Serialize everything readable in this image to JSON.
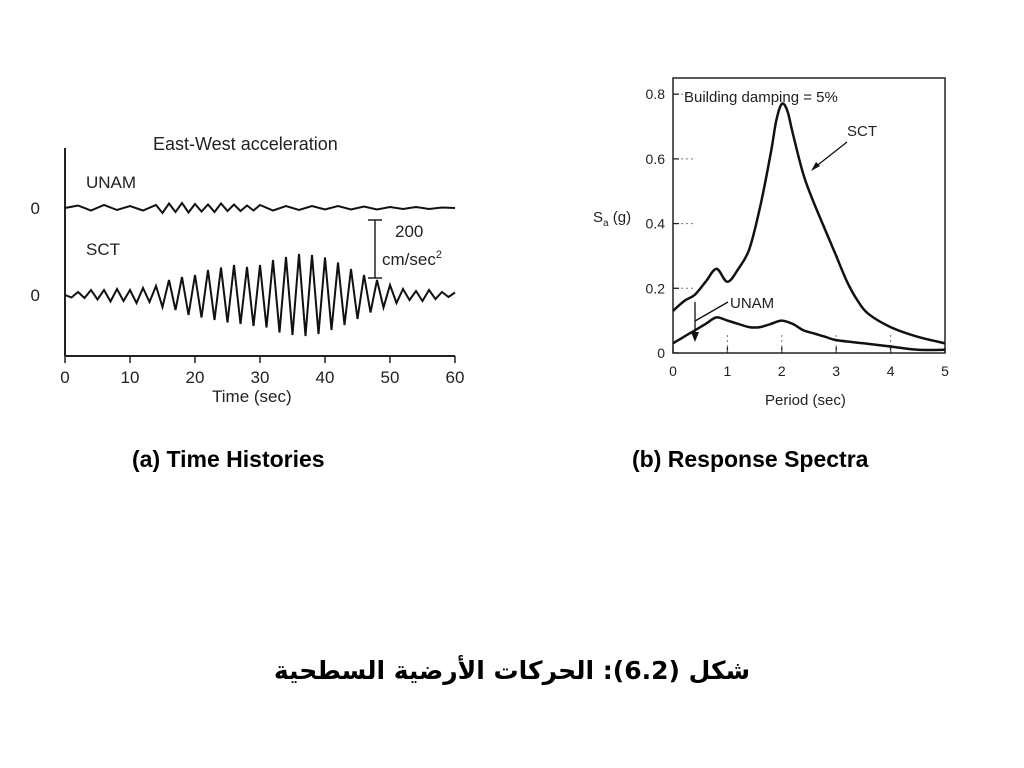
{
  "chart_data": [
    {
      "type": "line",
      "title": "East-West acceleration",
      "xlabel": "Time (sec)",
      "x_ticks": [
        0,
        10,
        20,
        30,
        40,
        50,
        60
      ],
      "xlim": [
        0,
        60
      ],
      "y_ticks": [
        "0",
        "0"
      ],
      "scale_bar": {
        "value": "200",
        "unit_prefix": "cm/sec",
        "unit_sup": "2"
      },
      "series": [
        {
          "name": "UNAM",
          "x": [
            0,
            2,
            4,
            6,
            8,
            10,
            12,
            14,
            15,
            16,
            17,
            18,
            19,
            20,
            21,
            22,
            23,
            24,
            25,
            26,
            27,
            28,
            29,
            30,
            32,
            34,
            36,
            38,
            40,
            42,
            44,
            46,
            48,
            50,
            52,
            54,
            56,
            58,
            60
          ],
          "y": [
            0,
            5,
            -5,
            6,
            -4,
            4,
            -5,
            6,
            -10,
            9,
            -8,
            10,
            -9,
            8,
            -7,
            7,
            -8,
            9,
            -6,
            7,
            -6,
            5,
            -5,
            6,
            -5,
            4,
            -4,
            4,
            -3,
            4,
            -3,
            3,
            -3,
            2,
            -2,
            2,
            -2,
            1,
            0
          ]
        },
        {
          "name": "SCT",
          "x": [
            0,
            1,
            2,
            3,
            4,
            5,
            6,
            7,
            8,
            9,
            10,
            11,
            12,
            13,
            14,
            15,
            16,
            17,
            18,
            19,
            20,
            21,
            22,
            23,
            24,
            25,
            26,
            27,
            28,
            29,
            30,
            31,
            32,
            33,
            34,
            35,
            36,
            37,
            38,
            39,
            40,
            41,
            42,
            43,
            44,
            45,
            46,
            47,
            48,
            49,
            50,
            51,
            52,
            53,
            54,
            55,
            56,
            57,
            58,
            59,
            60
          ],
          "y": [
            0,
            -5,
            6,
            -6,
            10,
            -9,
            10,
            -13,
            12,
            -12,
            10,
            -16,
            14,
            -14,
            18,
            -24,
            30,
            -30,
            36,
            -40,
            40,
            -45,
            50,
            -50,
            55,
            -55,
            60,
            -58,
            56,
            -62,
            60,
            -65,
            70,
            -75,
            76,
            -80,
            82,
            -82,
            80,
            -78,
            75,
            -70,
            65,
            -60,
            52,
            -48,
            40,
            -35,
            30,
            -25,
            20,
            -16,
            12,
            -10,
            8,
            -12,
            10,
            -8,
            6,
            -4,
            5
          ]
        }
      ]
    },
    {
      "type": "line",
      "title": "Building damping = 5%",
      "xlabel": "Period (sec)",
      "ylabel_main": "S",
      "ylabel_sub": "a",
      "ylabel_unit": " (g)",
      "xlim": [
        0,
        5
      ],
      "ylim": [
        0,
        0.85
      ],
      "x_ticks": [
        0,
        1,
        2,
        3,
        4,
        5
      ],
      "y_ticks": [
        0,
        0.2,
        0.4,
        0.6,
        0.8
      ],
      "series": [
        {
          "name": "SCT",
          "x": [
            0,
            0.2,
            0.4,
            0.6,
            0.8,
            1.0,
            1.2,
            1.4,
            1.6,
            1.8,
            1.9,
            2.0,
            2.1,
            2.2,
            2.4,
            2.6,
            2.8,
            3.0,
            3.2,
            3.4,
            3.6,
            4.0,
            4.5,
            5.0
          ],
          "y": [
            0.13,
            0.16,
            0.18,
            0.22,
            0.26,
            0.22,
            0.26,
            0.32,
            0.45,
            0.62,
            0.72,
            0.77,
            0.75,
            0.68,
            0.55,
            0.46,
            0.38,
            0.3,
            0.22,
            0.16,
            0.12,
            0.08,
            0.05,
            0.03
          ]
        },
        {
          "name": "UNAM",
          "x": [
            0,
            0.2,
            0.4,
            0.6,
            0.8,
            1.0,
            1.2,
            1.4,
            1.6,
            1.8,
            2.0,
            2.2,
            2.4,
            2.6,
            2.8,
            3.0,
            3.5,
            4.0,
            4.5,
            5.0
          ],
          "y": [
            0.03,
            0.05,
            0.07,
            0.09,
            0.11,
            0.1,
            0.09,
            0.08,
            0.08,
            0.09,
            0.1,
            0.09,
            0.07,
            0.06,
            0.05,
            0.04,
            0.03,
            0.02,
            0.01,
            0.01
          ]
        }
      ]
    }
  ],
  "captions": {
    "a": "(a) Time Histories",
    "b": "(b) Response Spectra"
  },
  "figure_caption": "شكل (6.2): الحركات الأرضية السطحية"
}
